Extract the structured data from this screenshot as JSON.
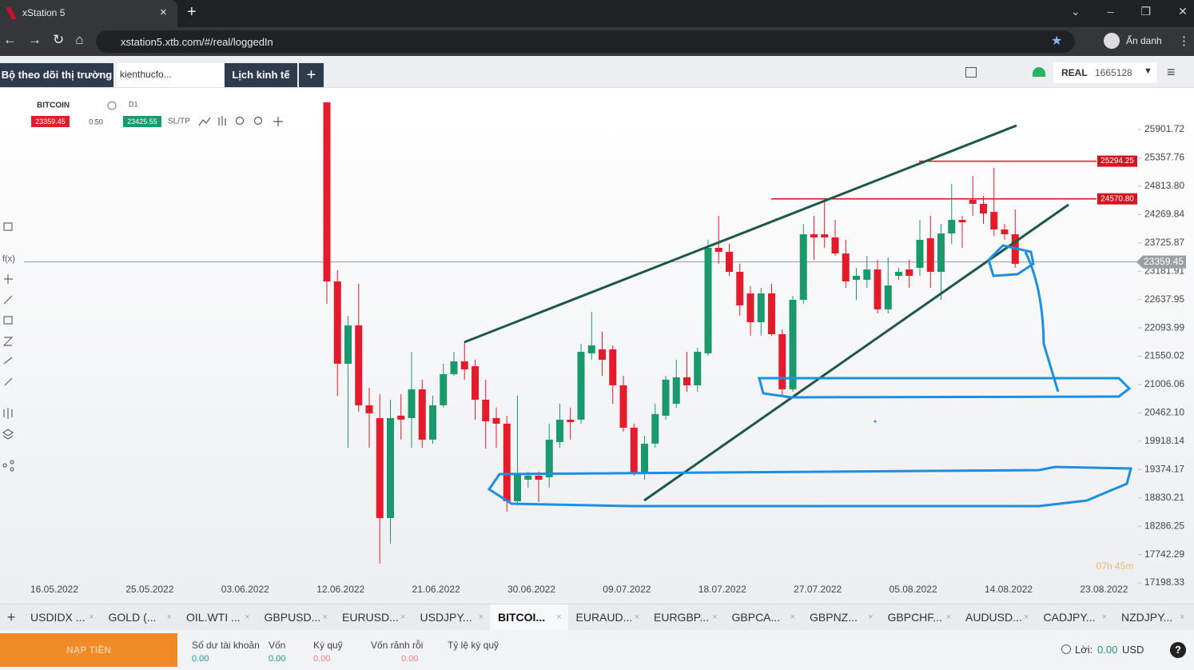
{
  "browser": {
    "tab_title": "xStation 5",
    "url": "xstation5.xtb.com/#/real/loggedIn",
    "profile": "Ẩn danh"
  },
  "app_header": {
    "tabs": [
      "Bộ theo dõi thị trường",
      "kienthucfo...",
      "Lịch kinh tế"
    ],
    "account_type": "REAL",
    "account_id": "1665128"
  },
  "chart_header": {
    "symbol": "BITCOIN",
    "interval": "D1",
    "spread": "0.50",
    "sl_tp": "SL/TP",
    "side_label": "f(x)"
  },
  "chart_data": {
    "type": "candlestick",
    "up_color": "#1a9a6c",
    "down_color": "#e31b2b",
    "open": [
      26424,
      22986,
      21405,
      22142,
      20608,
      20362,
      18444,
      20409,
      20362,
      20915,
      19948,
      20608,
      21206,
      21451,
      21359,
      20715,
      20362,
      20255,
      18766,
      19180,
      19257,
      19227,
      19902,
      20332,
      20332,
      21605,
      21682,
      21682,
      20991,
      20178,
      19304,
      19871,
      20408,
      20638,
      21145,
      20991,
      21605,
      23631,
      23554,
      23170,
      22756,
      22203,
      22756,
      21973,
      20915,
      22633,
      23891,
      23891,
      23830,
      23523,
      23017,
      23017,
      23216,
      22449,
      23093,
      23216,
      23247,
      23815,
      23170,
      23907,
      24167,
      24551,
      24475,
      24320,
      23984,
      23891
    ],
    "high": [
      26424,
      23201,
      22326,
      22940,
      20945,
      20822,
      20715,
      20822,
      21635,
      21098,
      20792,
      21405,
      21635,
      21820,
      21482,
      21099,
      20562,
      20408,
      20792,
      19334,
      19334,
      20255,
      20638,
      20562,
      21789,
      22403,
      22020,
      21758,
      21175,
      20255,
      20024,
      20638,
      21175,
      21482,
      21635,
      21712,
      23784,
      24244,
      23707,
      23324,
      22894,
      22863,
      22940,
      22065,
      22710,
      24090,
      24244,
      24551,
      24167,
      23784,
      23247,
      23477,
      23401,
      23446,
      23247,
      23401,
      24167,
      24244,
      24090,
      24858,
      24244,
      25012,
      24628,
      25165,
      24090,
      24367
    ],
    "low": [
      22556,
      20788,
      19792,
      20485,
      19792,
      17569,
      17953,
      19948,
      19792,
      19795,
      19871,
      20562,
      21175,
      21099,
      20331,
      19778,
      19794,
      18567,
      18689,
      19027,
      18751,
      19027,
      19795,
      19948,
      20255,
      21482,
      21175,
      20638,
      20101,
      19257,
      19180,
      19795,
      20331,
      20562,
      20868,
      20868,
      21558,
      23324,
      23093,
      22326,
      21943,
      21943,
      21943,
      20792,
      20868,
      22556,
      23401,
      23631,
      23477,
      22864,
      22633,
      22863,
      22372,
      22372,
      23017,
      22863,
      23093,
      22863,
      22633,
      23707,
      23630,
      24244,
      24090,
      23860,
      23784,
      23247
    ],
    "close": [
      22986,
      21405,
      22142,
      20608,
      20455,
      18444,
      20362,
      20332,
      20915,
      19948,
      20608,
      21206,
      21451,
      21298,
      20715,
      20301,
      20255,
      18766,
      19304,
      19257,
      19180,
      19948,
      20332,
      20285,
      21636,
      21758,
      21482,
      20991,
      20178,
      19304,
      19871,
      20439,
      21099,
      21145,
      20991,
      21635,
      23631,
      23554,
      23170,
      22526,
      22203,
      22756,
      21973,
      20915,
      22633,
      23891,
      23830,
      23830,
      23523,
      22986,
      23093,
      23216,
      22449,
      22909,
      23170,
      23093,
      23784,
      23170,
      23907,
      24167,
      24121,
      24475,
      24290,
      23984,
      23891,
      23324
    ],
    "ylim": [
      17000,
      26700
    ],
    "yticks": [
      25901.72,
      {
        "value": 25357.76,
        "label": "25357.76"
      },
      {
        "value": 24813.8,
        "label": "24813.80"
      },
      24269.84,
      23725.87,
      23181.91,
      22637.95,
      22093.99,
      21550.02,
      21006.06,
      {
        "value": 20462.1,
        "label": "20462.10"
      },
      19918.14,
      19374.17,
      18830.21,
      18286.25,
      17742.29,
      17198.33
    ],
    "x_labels": [
      "16.05.2022",
      "25.05.2022",
      "03.06.2022",
      "12.06.2022",
      "21.06.2022",
      "30.06.2022",
      "09.07.2022",
      "18.07.2022",
      "27.07.2022",
      "05.08.2022",
      "14.08.2022",
      "23.08.2022"
    ],
    "levels": [
      25294.25,
      {
        "value": 24570.8,
        "label": "24570.80"
      }
    ],
    "level_color": "#d9121f",
    "last_price": 23359.45,
    "ask": 23425.55,
    "timer": "07h 45m"
  },
  "instrument_tabs": [
    "USDIDX ...",
    "GOLD (...",
    "OIL.WTI ...",
    "GBPUSD...",
    "EURUSD...",
    "USDJPY...",
    "BITCOI...",
    "EURAUD...",
    "EURGBP...",
    "GBPCA...",
    "GBPNZ...",
    "GBPCHF...",
    "AUDUSD...",
    "CADJPY...",
    "NZDJPY..."
  ],
  "active_tab": 6,
  "footer": {
    "deposit": "NẠP TIỀN",
    "fields": [
      {
        "label": "Số dư tài khoản",
        "value": "0.00"
      },
      {
        "label": "Vốn",
        "value": "0.00"
      },
      {
        "label": "Ký quỹ",
        "value": "0.00"
      },
      {
        "label": "Vốn rảnh rỗi",
        "value": "0.00"
      },
      {
        "label": "Tỷ lệ ký quỹ"
      }
    ],
    "profit_label": "Lời:",
    "profit_value": "0.00",
    "currency": "USD"
  }
}
